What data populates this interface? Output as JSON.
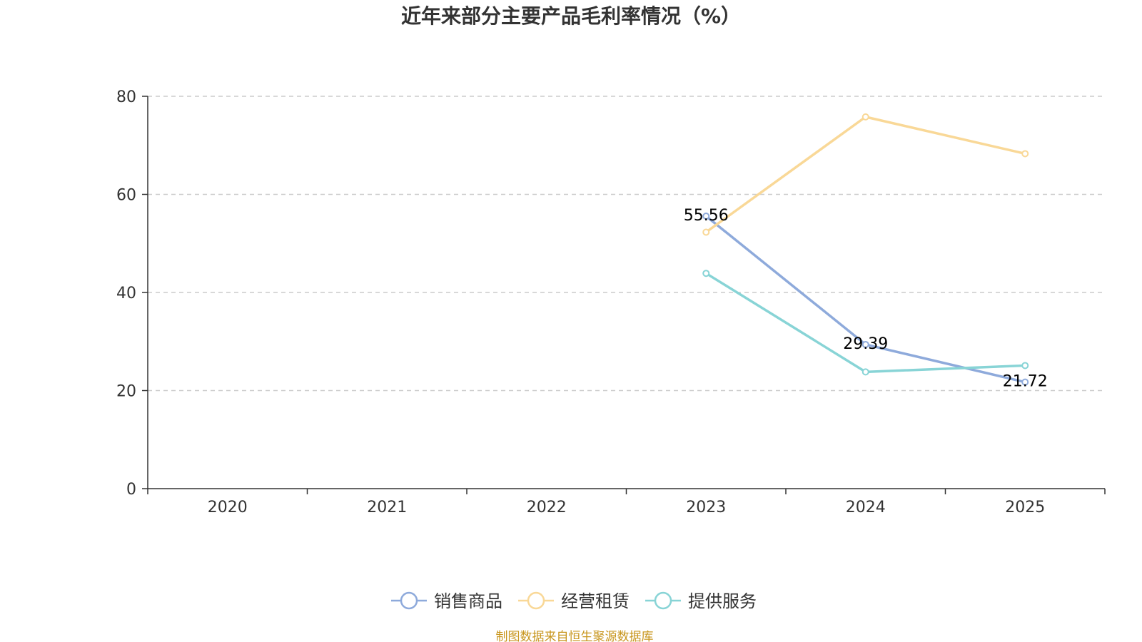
{
  "chart_data": {
    "type": "line",
    "title": "近年来部分主要产品毛利率情况（%）",
    "xlabel": "",
    "ylabel": "",
    "categories": [
      "2020",
      "2021",
      "2022",
      "2023",
      "2024",
      "2025"
    ],
    "ylim": [
      0,
      80
    ],
    "yticks": [
      0,
      20,
      40,
      60,
      80
    ],
    "grid": true,
    "legend_position": "bottom",
    "series": [
      {
        "name": "销售商品",
        "color": "#8eaadb",
        "values": [
          null,
          null,
          null,
          55.56,
          29.39,
          21.72
        ],
        "labels": [
          null,
          null,
          null,
          "55.56",
          "29.39",
          "21.72"
        ]
      },
      {
        "name": "经营租赁",
        "color": "#f9d897",
        "values": [
          null,
          null,
          null,
          52.3,
          75.8,
          68.3
        ],
        "labels": [
          null,
          null,
          null,
          null,
          null,
          null
        ]
      },
      {
        "name": "提供服务",
        "color": "#88d4d6",
        "values": [
          null,
          null,
          null,
          43.9,
          23.8,
          25.1
        ],
        "labels": [
          null,
          null,
          null,
          null,
          null,
          null
        ]
      }
    ]
  },
  "source": "制图数据来自恒生聚源数据库"
}
